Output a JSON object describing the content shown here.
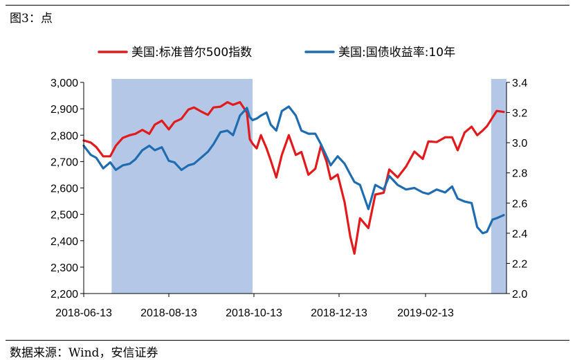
{
  "figure": {
    "title": "图3：点",
    "source": "数据来源：Wind，安信证券"
  },
  "chart_data": {
    "type": "line",
    "legend": {
      "placement": "top"
    },
    "x_tick_labels": [
      "2018-06-13",
      "2018-08-13",
      "2018-10-13",
      "2018-12-13",
      "2019-02-13"
    ],
    "xlim": [
      "2018-06-13",
      "2019-04-12"
    ],
    "y_left": {
      "lim": [
        2200,
        3000
      ],
      "ticks": [
        2200,
        2300,
        2400,
        2500,
        2600,
        2700,
        2800,
        2900,
        3000
      ],
      "tick_labels": [
        "2,200",
        "2,300",
        "2,400",
        "2,500",
        "2,600",
        "2,700",
        "2,800",
        "2,900",
        "3,000"
      ]
    },
    "y_right": {
      "lim": [
        2.0,
        3.4
      ],
      "ticks": [
        2.0,
        2.2,
        2.4,
        2.6,
        2.8,
        3.0,
        3.2,
        3.4
      ],
      "tick_labels": [
        "2.0",
        "2.2",
        "2.4",
        "2.6",
        "2.8",
        "3.0",
        "3.2",
        "3.4"
      ]
    },
    "shaded_periods": [
      {
        "start": "2018-07-03",
        "end": "2018-10-12",
        "color": "#B4C7E7"
      },
      {
        "start": "2019-04-01",
        "end": "2019-04-12",
        "color": "#B4C7E7"
      }
    ],
    "series": [
      {
        "name": "美国:标准普尔500指数",
        "axis": "left",
        "color": "#E31A1C",
        "points": [
          [
            "2018-06-13",
            2780
          ],
          [
            "2018-06-18",
            2772
          ],
          [
            "2018-06-22",
            2755
          ],
          [
            "2018-06-27",
            2720
          ],
          [
            "2018-07-02",
            2720
          ],
          [
            "2018-07-06",
            2760
          ],
          [
            "2018-07-11",
            2790
          ],
          [
            "2018-07-16",
            2800
          ],
          [
            "2018-07-20",
            2805
          ],
          [
            "2018-07-25",
            2820
          ],
          [
            "2018-07-30",
            2805
          ],
          [
            "2018-08-03",
            2840
          ],
          [
            "2018-08-08",
            2855
          ],
          [
            "2018-08-13",
            2822
          ],
          [
            "2018-08-17",
            2850
          ],
          [
            "2018-08-22",
            2862
          ],
          [
            "2018-08-27",
            2897
          ],
          [
            "2018-08-31",
            2905
          ],
          [
            "2018-09-05",
            2890
          ],
          [
            "2018-09-10",
            2877
          ],
          [
            "2018-09-14",
            2905
          ],
          [
            "2018-09-19",
            2908
          ],
          [
            "2018-09-24",
            2925
          ],
          [
            "2018-09-28",
            2915
          ],
          [
            "2018-10-03",
            2925
          ],
          [
            "2018-10-08",
            2885
          ],
          [
            "2018-10-10",
            2785
          ],
          [
            "2018-10-12",
            2768
          ],
          [
            "2018-10-15",
            2750
          ],
          [
            "2018-10-18",
            2800
          ],
          [
            "2018-10-22",
            2750
          ],
          [
            "2018-10-25",
            2705
          ],
          [
            "2018-10-29",
            2640
          ],
          [
            "2018-11-02",
            2725
          ],
          [
            "2018-11-07",
            2800
          ],
          [
            "2018-11-12",
            2725
          ],
          [
            "2018-11-16",
            2736
          ],
          [
            "2018-11-21",
            2650
          ],
          [
            "2018-11-26",
            2673
          ],
          [
            "2018-11-30",
            2760
          ],
          [
            "2018-12-04",
            2700
          ],
          [
            "2018-12-07",
            2633
          ],
          [
            "2018-12-12",
            2651
          ],
          [
            "2018-12-17",
            2545
          ],
          [
            "2018-12-21",
            2416
          ],
          [
            "2018-12-24",
            2351
          ],
          [
            "2018-12-28",
            2485
          ],
          [
            "2019-01-03",
            2448
          ],
          [
            "2019-01-08",
            2575
          ],
          [
            "2019-01-14",
            2582
          ],
          [
            "2019-01-18",
            2670
          ],
          [
            "2019-01-24",
            2640
          ],
          [
            "2019-01-30",
            2681
          ],
          [
            "2019-02-05",
            2738
          ],
          [
            "2019-02-11",
            2710
          ],
          [
            "2019-02-15",
            2776
          ],
          [
            "2019-02-21",
            2774
          ],
          [
            "2019-02-27",
            2792
          ],
          [
            "2019-03-04",
            2792
          ],
          [
            "2019-03-08",
            2743
          ],
          [
            "2019-03-13",
            2810
          ],
          [
            "2019-03-18",
            2832
          ],
          [
            "2019-03-22",
            2800
          ],
          [
            "2019-03-26",
            2818
          ],
          [
            "2019-03-29",
            2834
          ],
          [
            "2019-04-02",
            2867
          ],
          [
            "2019-04-05",
            2892
          ],
          [
            "2019-04-10",
            2888
          ]
        ]
      },
      {
        "name": "美国:国债收益率:10年",
        "axis": "right",
        "color": "#1F6CB0",
        "points": [
          [
            "2018-06-13",
            2.98
          ],
          [
            "2018-06-18",
            2.92
          ],
          [
            "2018-06-22",
            2.9
          ],
          [
            "2018-06-27",
            2.83
          ],
          [
            "2018-07-02",
            2.87
          ],
          [
            "2018-07-06",
            2.82
          ],
          [
            "2018-07-11",
            2.85
          ],
          [
            "2018-07-16",
            2.86
          ],
          [
            "2018-07-20",
            2.89
          ],
          [
            "2018-07-25",
            2.95
          ],
          [
            "2018-07-30",
            2.98
          ],
          [
            "2018-08-03",
            2.95
          ],
          [
            "2018-08-08",
            2.97
          ],
          [
            "2018-08-13",
            2.88
          ],
          [
            "2018-08-17",
            2.87
          ],
          [
            "2018-08-22",
            2.82
          ],
          [
            "2018-08-27",
            2.85
          ],
          [
            "2018-08-31",
            2.86
          ],
          [
            "2018-09-05",
            2.9
          ],
          [
            "2018-09-10",
            2.94
          ],
          [
            "2018-09-14",
            2.99
          ],
          [
            "2018-09-19",
            3.07
          ],
          [
            "2018-09-24",
            3.08
          ],
          [
            "2018-09-28",
            3.05
          ],
          [
            "2018-10-03",
            3.18
          ],
          [
            "2018-10-08",
            3.23
          ],
          [
            "2018-10-10",
            3.17
          ],
          [
            "2018-10-12",
            3.15
          ],
          [
            "2018-10-15",
            3.16
          ],
          [
            "2018-10-18",
            3.18
          ],
          [
            "2018-10-22",
            3.2
          ],
          [
            "2018-10-25",
            3.12
          ],
          [
            "2018-10-29",
            3.08
          ],
          [
            "2018-11-02",
            3.21
          ],
          [
            "2018-11-07",
            3.24
          ],
          [
            "2018-11-12",
            3.18
          ],
          [
            "2018-11-16",
            3.08
          ],
          [
            "2018-11-21",
            3.06
          ],
          [
            "2018-11-26",
            3.06
          ],
          [
            "2018-11-30",
            2.99
          ],
          [
            "2018-12-04",
            2.91
          ],
          [
            "2018-12-07",
            2.85
          ],
          [
            "2018-12-12",
            2.91
          ],
          [
            "2018-12-17",
            2.86
          ],
          [
            "2018-12-21",
            2.79
          ],
          [
            "2018-12-24",
            2.74
          ],
          [
            "2018-12-28",
            2.72
          ],
          [
            "2019-01-03",
            2.56
          ],
          [
            "2019-01-08",
            2.72
          ],
          [
            "2019-01-14",
            2.69
          ],
          [
            "2019-01-18",
            2.78
          ],
          [
            "2019-01-24",
            2.72
          ],
          [
            "2019-01-30",
            2.69
          ],
          [
            "2019-02-05",
            2.7
          ],
          [
            "2019-02-11",
            2.67
          ],
          [
            "2019-02-15",
            2.66
          ],
          [
            "2019-02-21",
            2.69
          ],
          [
            "2019-02-27",
            2.67
          ],
          [
            "2019-03-04",
            2.71
          ],
          [
            "2019-03-08",
            2.63
          ],
          [
            "2019-03-13",
            2.61
          ],
          [
            "2019-03-18",
            2.6
          ],
          [
            "2019-03-22",
            2.44
          ],
          [
            "2019-03-26",
            2.4
          ],
          [
            "2019-03-29",
            2.41
          ],
          [
            "2019-04-02",
            2.49
          ],
          [
            "2019-04-05",
            2.5
          ],
          [
            "2019-04-10",
            2.52
          ]
        ]
      }
    ]
  }
}
